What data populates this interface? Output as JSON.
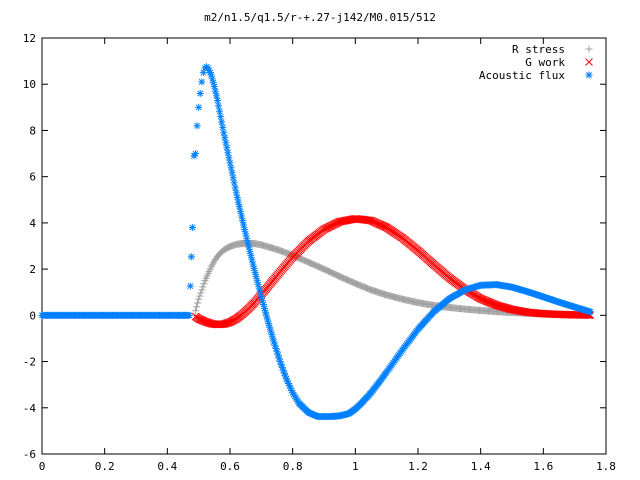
{
  "chart_data": {
    "type": "scatter",
    "title": "m2/n1.5/q1.5/r-+.27-j142/M0.015/512",
    "xlabel": "",
    "ylabel": "",
    "xlim": [
      0,
      1.8
    ],
    "ylim": [
      -6,
      12
    ],
    "x_ticks": [
      "0",
      "0.2",
      "0.4",
      "0.6",
      "0.8",
      "1",
      "1.2",
      "1.4",
      "1.6",
      "1.8"
    ],
    "y_ticks": [
      "-6",
      "-4",
      "-2",
      "0",
      "2",
      "4",
      "6",
      "8",
      "10",
      "12"
    ],
    "grid": false,
    "legend_position": "top-right",
    "series": [
      {
        "name": "R stress",
        "marker": "+",
        "color": "#a0a0a0",
        "points": [
          [
            0.49,
            0.2
          ],
          [
            0.5,
            0.7
          ],
          [
            0.51,
            1.1
          ],
          [
            0.52,
            1.5
          ],
          [
            0.53,
            1.8
          ],
          [
            0.54,
            2.1
          ],
          [
            0.55,
            2.35
          ],
          [
            0.56,
            2.55
          ],
          [
            0.57,
            2.7
          ],
          [
            0.58,
            2.83
          ],
          [
            0.6,
            2.98
          ],
          [
            0.62,
            3.07
          ],
          [
            0.64,
            3.11
          ],
          [
            0.66,
            3.12
          ],
          [
            0.68,
            3.1
          ],
          [
            0.7,
            3.05
          ],
          [
            0.75,
            2.85
          ],
          [
            0.8,
            2.6
          ],
          [
            0.85,
            2.3
          ],
          [
            0.9,
            2.0
          ],
          [
            0.95,
            1.68
          ],
          [
            1.0,
            1.38
          ],
          [
            1.05,
            1.1
          ],
          [
            1.1,
            0.88
          ],
          [
            1.15,
            0.7
          ],
          [
            1.2,
            0.55
          ],
          [
            1.25,
            0.43
          ],
          [
            1.3,
            0.34
          ],
          [
            1.35,
            0.27
          ],
          [
            1.4,
            0.21
          ],
          [
            1.45,
            0.16
          ],
          [
            1.5,
            0.12
          ],
          [
            1.55,
            0.09
          ],
          [
            1.6,
            0.06
          ],
          [
            1.65,
            0.04
          ],
          [
            1.7,
            0.02
          ],
          [
            1.74,
            0.01
          ]
        ]
      },
      {
        "name": "G work",
        "marker": "x",
        "color": "#ff0000",
        "points": [
          [
            0.49,
            -0.05
          ],
          [
            0.5,
            -0.15
          ],
          [
            0.52,
            -0.27
          ],
          [
            0.54,
            -0.36
          ],
          [
            0.56,
            -0.4
          ],
          [
            0.58,
            -0.38
          ],
          [
            0.6,
            -0.3
          ],
          [
            0.62,
            -0.15
          ],
          [
            0.64,
            0.05
          ],
          [
            0.66,
            0.3
          ],
          [
            0.68,
            0.58
          ],
          [
            0.7,
            0.9
          ],
          [
            0.72,
            1.22
          ],
          [
            0.75,
            1.72
          ],
          [
            0.8,
            2.52
          ],
          [
            0.85,
            3.2
          ],
          [
            0.9,
            3.72
          ],
          [
            0.95,
            4.05
          ],
          [
            1.0,
            4.18
          ],
          [
            1.05,
            4.1
          ],
          [
            1.1,
            3.8
          ],
          [
            1.15,
            3.35
          ],
          [
            1.2,
            2.8
          ],
          [
            1.25,
            2.2
          ],
          [
            1.3,
            1.62
          ],
          [
            1.35,
            1.12
          ],
          [
            1.4,
            0.72
          ],
          [
            1.45,
            0.44
          ],
          [
            1.5,
            0.25
          ],
          [
            1.55,
            0.13
          ],
          [
            1.6,
            0.07
          ],
          [
            1.65,
            0.04
          ],
          [
            1.7,
            0.02
          ],
          [
            1.75,
            0.01
          ]
        ]
      },
      {
        "name": "Acoustic flux",
        "marker": "*",
        "color": "#0080ff",
        "points": [
          [
            0.0,
            0.0
          ],
          [
            0.05,
            0.0
          ],
          [
            0.1,
            0.0
          ],
          [
            0.15,
            0.0
          ],
          [
            0.2,
            0.0
          ],
          [
            0.25,
            0.0
          ],
          [
            0.3,
            0.0
          ],
          [
            0.35,
            0.0
          ],
          [
            0.4,
            0.0
          ],
          [
            0.45,
            0.0
          ],
          [
            0.47,
            0.0
          ],
          [
            0.48,
            3.8
          ],
          [
            0.485,
            6.9
          ],
          [
            0.49,
            7.0
          ],
          [
            0.495,
            8.2
          ],
          [
            0.5,
            9.0
          ],
          [
            0.505,
            9.6
          ],
          [
            0.51,
            10.1
          ],
          [
            0.515,
            10.5
          ],
          [
            0.52,
            10.7
          ],
          [
            0.525,
            10.75
          ],
          [
            0.53,
            10.7
          ],
          [
            0.54,
            10.4
          ],
          [
            0.55,
            9.9
          ],
          [
            0.56,
            9.3
          ],
          [
            0.57,
            8.6
          ],
          [
            0.58,
            7.9
          ],
          [
            0.6,
            6.6
          ],
          [
            0.62,
            5.3
          ],
          [
            0.64,
            4.1
          ],
          [
            0.66,
            2.95
          ],
          [
            0.68,
            1.85
          ],
          [
            0.7,
            0.8
          ],
          [
            0.72,
            -0.2
          ],
          [
            0.74,
            -1.15
          ],
          [
            0.76,
            -2.0
          ],
          [
            0.78,
            -2.75
          ],
          [
            0.8,
            -3.35
          ],
          [
            0.82,
            -3.8
          ],
          [
            0.85,
            -4.2
          ],
          [
            0.88,
            -4.38
          ],
          [
            0.92,
            -4.38
          ],
          [
            0.95,
            -4.35
          ],
          [
            0.98,
            -4.25
          ],
          [
            1.0,
            -4.05
          ],
          [
            1.02,
            -3.8
          ],
          [
            1.05,
            -3.35
          ],
          [
            1.08,
            -2.82
          ],
          [
            1.1,
            -2.45
          ],
          [
            1.15,
            -1.5
          ],
          [
            1.2,
            -0.6
          ],
          [
            1.25,
            0.15
          ],
          [
            1.3,
            0.72
          ],
          [
            1.35,
            1.1
          ],
          [
            1.4,
            1.3
          ],
          [
            1.45,
            1.33
          ],
          [
            1.5,
            1.22
          ],
          [
            1.55,
            1.02
          ],
          [
            1.6,
            0.8
          ],
          [
            1.65,
            0.57
          ],
          [
            1.7,
            0.36
          ],
          [
            1.75,
            0.15
          ]
        ]
      }
    ]
  }
}
